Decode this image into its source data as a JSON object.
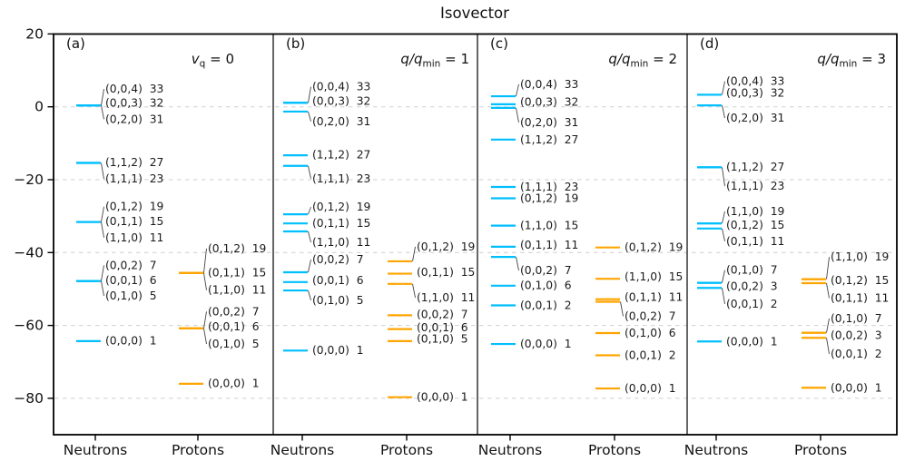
{
  "chart_data": {
    "type": "line",
    "subtype": "energy-level-scheme",
    "title": "Isovector",
    "ylim": [
      -90,
      20
    ],
    "grid": true,
    "yticks": [
      {
        "label": "20",
        "value": 20
      },
      {
        "label": "0",
        "value": 0
      },
      {
        "label": "−20",
        "value": -20
      },
      {
        "label": "−40",
        "value": -40
      },
      {
        "label": "−60",
        "value": -60
      },
      {
        "label": "−80",
        "value": -80
      }
    ],
    "gridlines": [
      0,
      -20,
      -40,
      -60,
      -80
    ],
    "columns": [
      "Neutrons",
      "Protons"
    ],
    "colors": {
      "neutrons": "#00BFFF",
      "protons": "#FFA500",
      "grid": "#cfcfcf",
      "frame": "#000000",
      "text": "#1a1a1a"
    },
    "panels": [
      {
        "tag": "(a)",
        "subtitle": {
          "pre": "v",
          "sub": "q",
          "post": " = 0"
        },
        "neutrons": [
          {
            "qn": "(0,0,4)",
            "n": 33,
            "e": 0.4,
            "le": 4.9
          },
          {
            "qn": "(0,0,3)",
            "n": 32,
            "e": 0.4,
            "le": 1.0
          },
          {
            "qn": "(0,2,0)",
            "n": 31,
            "e": 0.4,
            "le": -3.4
          },
          {
            "qn": "(1,1,2)",
            "n": 27,
            "e": -15.4,
            "le": -15.3
          },
          {
            "qn": "(1,1,1)",
            "n": 23,
            "e": -15.4,
            "le": -19.8
          },
          {
            "qn": "(0,1,2)",
            "n": 19,
            "e": -31.6,
            "le": -27.4
          },
          {
            "qn": "(0,1,1)",
            "n": 15,
            "e": -31.6,
            "le": -31.5
          },
          {
            "qn": "(1,1,0)",
            "n": 11,
            "e": -31.6,
            "le": -35.9
          },
          {
            "qn": "(0,0,2)",
            "n": 7,
            "e": -47.8,
            "le": -43.5
          },
          {
            "qn": "(0,0,1)",
            "n": 6,
            "e": -47.8,
            "le": -47.7
          },
          {
            "qn": "(0,1,0)",
            "n": 5,
            "e": -47.8,
            "le": -51.9
          },
          {
            "qn": "(0,0,0)",
            "n": 1,
            "e": -64.3,
            "le": -64.2
          }
        ],
        "protons": [
          {
            "qn": "(0,1,2)",
            "n": 19,
            "e": -45.6,
            "le": -38.9
          },
          {
            "qn": "(0,1,1)",
            "n": 15,
            "e": -45.6,
            "le": -45.5
          },
          {
            "qn": "(1,1,0)",
            "n": 11,
            "e": -45.6,
            "le": -50.3
          },
          {
            "qn": "(0,0,2)",
            "n": 7,
            "e": -60.8,
            "le": -56.2
          },
          {
            "qn": "(0,0,1)",
            "n": 6,
            "e": -60.8,
            "le": -60.4
          },
          {
            "qn": "(0,1,0)",
            "n": 5,
            "e": -60.8,
            "le": -65.1
          },
          {
            "qn": "(0,0,0)",
            "n": 1,
            "e": -76.0,
            "le": -75.9
          }
        ]
      },
      {
        "tag": "(b)",
        "subtitle": {
          "pre": "q/q",
          "sub": "min",
          "post": " = 1"
        },
        "neutrons": [
          {
            "qn": "(0,0,4)",
            "n": 33,
            "e": 1.1,
            "le": 5.5
          },
          {
            "qn": "(0,0,3)",
            "n": 32,
            "e": 1.1,
            "le": 1.6
          },
          {
            "qn": "(0,2,0)",
            "n": 31,
            "e": -1.3,
            "le": -4.0
          },
          {
            "qn": "(1,1,2)",
            "n": 27,
            "e": -13.3,
            "le": -13.2
          },
          {
            "qn": "(1,1,1)",
            "n": 23,
            "e": -16.2,
            "le": -19.7
          },
          {
            "qn": "(0,1,2)",
            "n": 19,
            "e": -29.5,
            "le": -27.5
          },
          {
            "qn": "(0,1,1)",
            "n": 15,
            "e": -32.0,
            "le": -31.9
          },
          {
            "qn": "(1,1,0)",
            "n": 11,
            "e": -34.2,
            "le": -37.2
          },
          {
            "qn": "(0,0,2)",
            "n": 7,
            "e": -45.4,
            "le": -41.9
          },
          {
            "qn": "(0,0,1)",
            "n": 6,
            "e": -48.1,
            "le": -47.7
          },
          {
            "qn": "(0,1,0)",
            "n": 5,
            "e": -50.4,
            "le": -53.1
          },
          {
            "qn": "(0,0,0)",
            "n": 1,
            "e": -66.9,
            "le": -66.8
          }
        ],
        "protons": [
          {
            "qn": "(0,1,2)",
            "n": 19,
            "e": -42.4,
            "le": -38.4
          },
          {
            "qn": "(0,1,1)",
            "n": 15,
            "e": -45.8,
            "le": -45.4
          },
          {
            "qn": "(1,1,0)",
            "n": 11,
            "e": -48.6,
            "le": -52.4
          },
          {
            "qn": "(0,0,2)",
            "n": 7,
            "e": -57.2,
            "le": -57.0
          },
          {
            "qn": "(0,0,1)",
            "n": 6,
            "e": -61.0,
            "le": -60.6
          },
          {
            "qn": "(0,1,0)",
            "n": 5,
            "e": -64.3,
            "le": -63.7
          },
          {
            "qn": "(0,0,0)",
            "n": 1,
            "e": -79.7,
            "le": -79.6
          }
        ]
      },
      {
        "tag": "(c)",
        "subtitle": {
          "pre": "q/q",
          "sub": "min",
          "post": " = 2"
        },
        "neutrons": [
          {
            "qn": "(0,0,4)",
            "n": 33,
            "e": 2.9,
            "le": 6.2
          },
          {
            "qn": "(0,0,3)",
            "n": 32,
            "e": 0.7,
            "le": 1.3
          },
          {
            "qn": "(0,2,0)",
            "n": 31,
            "e": -0.3,
            "le": -4.3
          },
          {
            "qn": "(1,1,2)",
            "n": 27,
            "e": -9.0
          },
          {
            "qn": "(1,1,1)",
            "n": 23,
            "e": -22.0
          },
          {
            "qn": "(0,1,2)",
            "n": 19,
            "e": -25.1
          },
          {
            "qn": "(1,1,0)",
            "n": 15,
            "e": -32.6
          },
          {
            "qn": "(0,1,1)",
            "n": 11,
            "e": -38.4,
            "le": -37.9
          },
          {
            "qn": "(0,0,2)",
            "n": 7,
            "e": -41.2,
            "le": -44.9
          },
          {
            "qn": "(0,1,0)",
            "n": 6,
            "e": -49.1,
            "le": -49.0
          },
          {
            "qn": "(0,0,1)",
            "n": 2,
            "e": -54.5
          },
          {
            "qn": "(0,0,0)",
            "n": 1,
            "e": -65.1
          }
        ],
        "protons": [
          {
            "qn": "(0,1,2)",
            "n": 19,
            "e": -38.6
          },
          {
            "qn": "(1,1,0)",
            "n": 15,
            "e": -47.2,
            "le": -46.6
          },
          {
            "qn": "(0,1,1)",
            "n": 11,
            "e": -52.8,
            "le": -52.3
          },
          {
            "qn": "(0,0,2)",
            "n": 7,
            "e": -53.5,
            "le": -57.5
          },
          {
            "qn": "(0,1,0)",
            "n": 6,
            "e": -62.1
          },
          {
            "qn": "(0,0,1)",
            "n": 2,
            "e": -68.2
          },
          {
            "qn": "(0,0,0)",
            "n": 1,
            "e": -77.3
          }
        ]
      },
      {
        "tag": "(d)",
        "subtitle": {
          "pre": "q/q",
          "sub": "min",
          "post": " = 3"
        },
        "neutrons": [
          {
            "qn": "(0,0,4)",
            "n": 33,
            "e": 3.3,
            "le": 7.0
          },
          {
            "qn": "(0,0,3)",
            "n": 32,
            "e": 3.3,
            "le": 3.8
          },
          {
            "qn": "(0,2,0)",
            "n": 31,
            "e": 0.4,
            "le": -3.1
          },
          {
            "qn": "(1,1,2)",
            "n": 27,
            "e": -16.6,
            "le": -16.5
          },
          {
            "qn": "(1,1,1)",
            "n": 23,
            "e": -16.6,
            "le": -21.8
          },
          {
            "qn": "(1,1,0)",
            "n": 19,
            "e": -32.0,
            "le": -28.7
          },
          {
            "qn": "(0,1,2)",
            "n": 15,
            "e": -32.0,
            "le": -32.4
          },
          {
            "qn": "(0,1,1)",
            "n": 11,
            "e": -33.4,
            "le": -36.9
          },
          {
            "qn": "(0,1,0)",
            "n": 7,
            "e": -48.3,
            "le": -44.8
          },
          {
            "qn": "(0,0,2)",
            "n": 3,
            "e": -48.3,
            "le": -49.3
          },
          {
            "qn": "(0,0,1)",
            "n": 2,
            "e": -49.7,
            "le": -54.1
          },
          {
            "qn": "(0,0,0)",
            "n": 1,
            "e": -64.4
          }
        ],
        "protons": [
          {
            "qn": "(1,1,0)",
            "n": 19,
            "e": -47.3,
            "le": -41.2
          },
          {
            "qn": "(0,1,2)",
            "n": 15,
            "e": -47.3,
            "le": -47.7
          },
          {
            "qn": "(0,1,1)",
            "n": 11,
            "e": -48.4,
            "le": -52.5
          },
          {
            "qn": "(0,1,0)",
            "n": 7,
            "e": -62.0,
            "le": -58.1
          },
          {
            "qn": "(0,0,2)",
            "n": 3,
            "e": -62.0,
            "le": -62.7
          },
          {
            "qn": "(0,0,1)",
            "n": 2,
            "e": -63.4,
            "le": -67.8
          },
          {
            "qn": "(0,0,0)",
            "n": 1,
            "e": -77.1
          }
        ]
      }
    ]
  }
}
